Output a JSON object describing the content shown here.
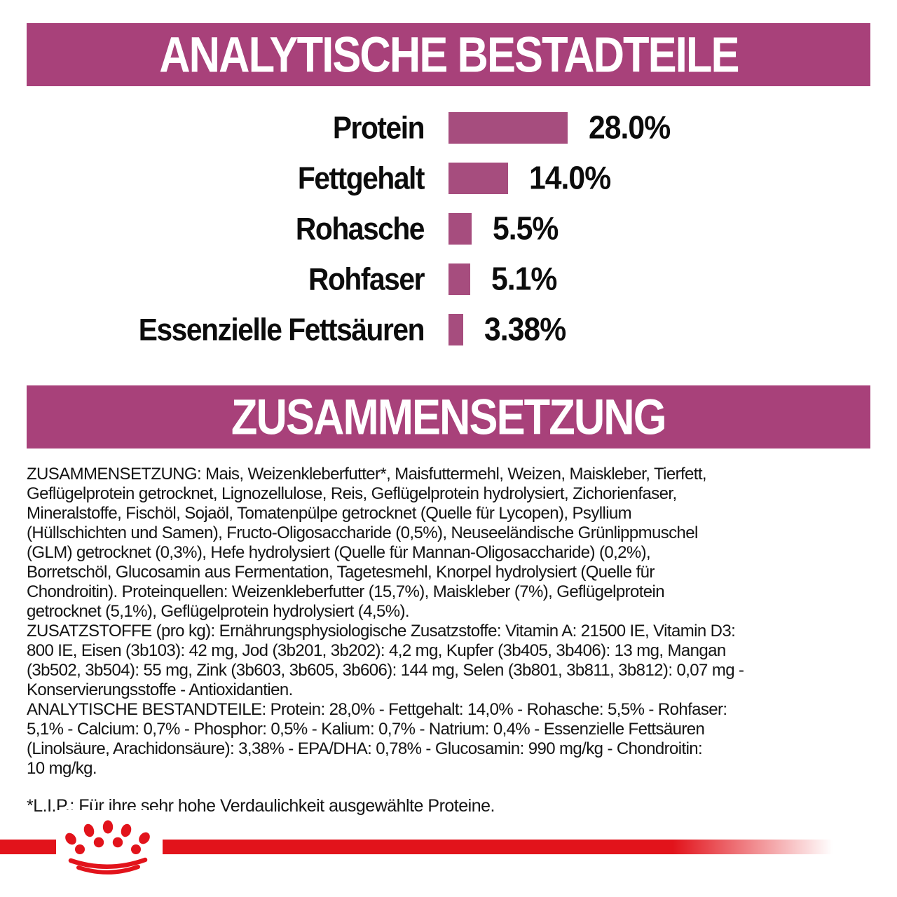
{
  "sections": {
    "analytical": {
      "title": "ANALYTISCHE BESTADTEILE"
    },
    "composition": {
      "title": "ZUSAMMENSETZUNG"
    }
  },
  "chart_data": {
    "type": "bar",
    "orientation": "horizontal",
    "title": "ANALYTISCHE BESTADTEILE",
    "categories": [
      "Protein",
      "Fettgehalt",
      "Rohasche",
      "Rohfaser",
      "Essenzielle Fettsäuren"
    ],
    "values": [
      28.0,
      14.0,
      5.5,
      5.1,
      3.38
    ],
    "value_labels": [
      "28.0%",
      "14.0%",
      "5.5%",
      "5.1%",
      "3.38%"
    ],
    "xlim": [
      0,
      30
    ],
    "grid": false,
    "legend": false,
    "bar_color": "#a64d7e"
  },
  "body": {
    "lines": [
      "ZUSAMMENSETZUNG: Mais, Weizenkleberfutter*, Maisfuttermehl, Weizen, Maiskleber, Tierfett,",
      "Geflügelprotein getrocknet, Lignozellulose, Reis, Geflügelprotein hydrolysiert, Zichorienfaser,",
      "Mineralstoffe, Fischöl, Sojaöl, Tomatenpülpe getrocknet (Quelle für Lycopen), Psyllium",
      "(Hüllschichten und Samen), Fructo-Oligosaccharide (0,5%), Neuseeländische Grünlippmuschel",
      "(GLM) getrocknet (0,3%), Hefe hydrolysiert (Quelle für Mannan-Oligosaccharide) (0,2%),",
      "Borretschöl, Glucosamin aus Fermentation, Tagetesmehl, Knorpel hydrolysiert (Quelle für",
      "Chondroitin). Proteinquellen: Weizenkleberfutter (15,7%), Maiskleber (7%), Geflügelprotein",
      "getrocknet (5,1%), Geflügelprotein hydrolysiert (4,5%).",
      "ZUSATZSTOFFE (pro kg): Ernährungsphysiologische Zusatzstoffe: Vitamin A: 21500 IE, Vitamin D3:",
      "800 IE, Eisen (3b103): 42 mg, Jod (3b201, 3b202): 4,2 mg, Kupfer (3b405, 3b406): 13 mg, Mangan",
      "(3b502, 3b504): 55 mg, Zink (3b603, 3b605, 3b606): 144 mg, Selen (3b801, 3b811, 3b812): 0,07 mg -",
      "Konservierungsstoffe - Antioxidantien.",
      "ANALYTISCHE BESTANDTEILE: Protein: 28,0% - Fettgehalt: 14,0% - Rohasche: 5,5% - Rohfaser:",
      "5,1% - Calcium: 0,7% - Phosphor: 0,5% - Kalium: 0,7% - Natrium: 0,4% - Essenzielle Fettsäuren",
      "(Linolsäure, Arachidonsäure): 3,38% - EPA/DHA: 0,78% - Glucosamin: 990 mg/kg - Chondroitin:",
      "10 mg/kg."
    ]
  },
  "footnote": "*L.I.P.: Für ihre sehr hohe Verdaulichkeit ausgewählte Proteine.",
  "colors": {
    "band": "#a8417a",
    "bar": "#a64d7e",
    "red": "#e2131b"
  },
  "logo": {
    "name": "royal-canin-crown"
  }
}
